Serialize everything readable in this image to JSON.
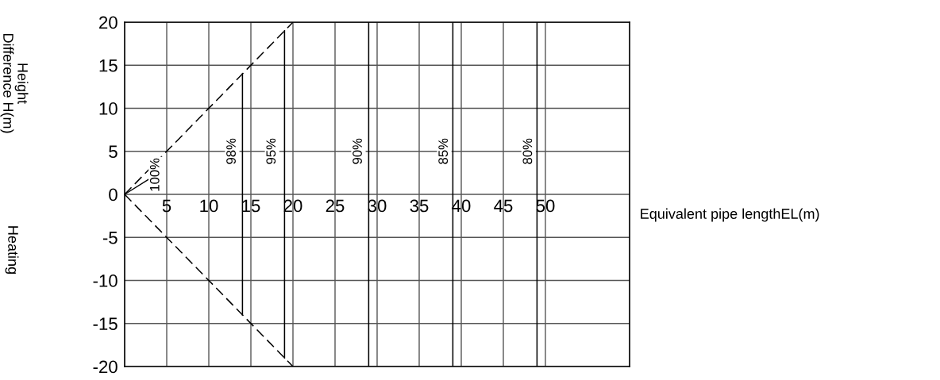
{
  "chart_data": {
    "type": "line",
    "xlabel": "Equivalent pipe lengthEL(m)",
    "ylabel": "Height\nDifference H(m)",
    "xlim": [
      0,
      60
    ],
    "ylim": [
      -20,
      20
    ],
    "xticks": [
      5,
      10,
      15,
      20,
      25,
      30,
      35,
      40,
      45,
      50
    ],
    "yticks": [
      -20,
      -15,
      -10,
      -5,
      0,
      5,
      10,
      15,
      20
    ],
    "grid": true,
    "marker": "none",
    "series": [
      {
        "color": "#000000",
        "x": [
          0,
          20
        ],
        "values": [
          0,
          20
        ],
        "line_style": "dashed"
      },
      {
        "color": "#000000",
        "x": [
          0,
          20
        ],
        "values": [
          0,
          -20
        ],
        "line_style": "dashed"
      },
      {
        "color": "#000000",
        "x": [
          14,
          14
        ],
        "values": [
          -14,
          14
        ],
        "line_style": "solid"
      },
      {
        "color": "#000000",
        "x": [
          19,
          19
        ],
        "values": [
          -19,
          19
        ],
        "line_style": "solid"
      },
      {
        "color": "#000000",
        "x": [
          29,
          29
        ],
        "values": [
          -20,
          20
        ],
        "line_style": "solid"
      },
      {
        "color": "#000000",
        "x": [
          39,
          39
        ],
        "values": [
          -20,
          20
        ],
        "line_style": "solid"
      },
      {
        "color": "#000000",
        "x": [
          49,
          49
        ],
        "values": [
          -20,
          20
        ],
        "line_style": "solid"
      }
    ],
    "annotations": [
      {
        "text": "100%",
        "x": 0,
        "y": 0
      },
      "98%",
      "95%",
      "90%",
      "85%",
      "80%",
      "Heating"
    ]
  }
}
